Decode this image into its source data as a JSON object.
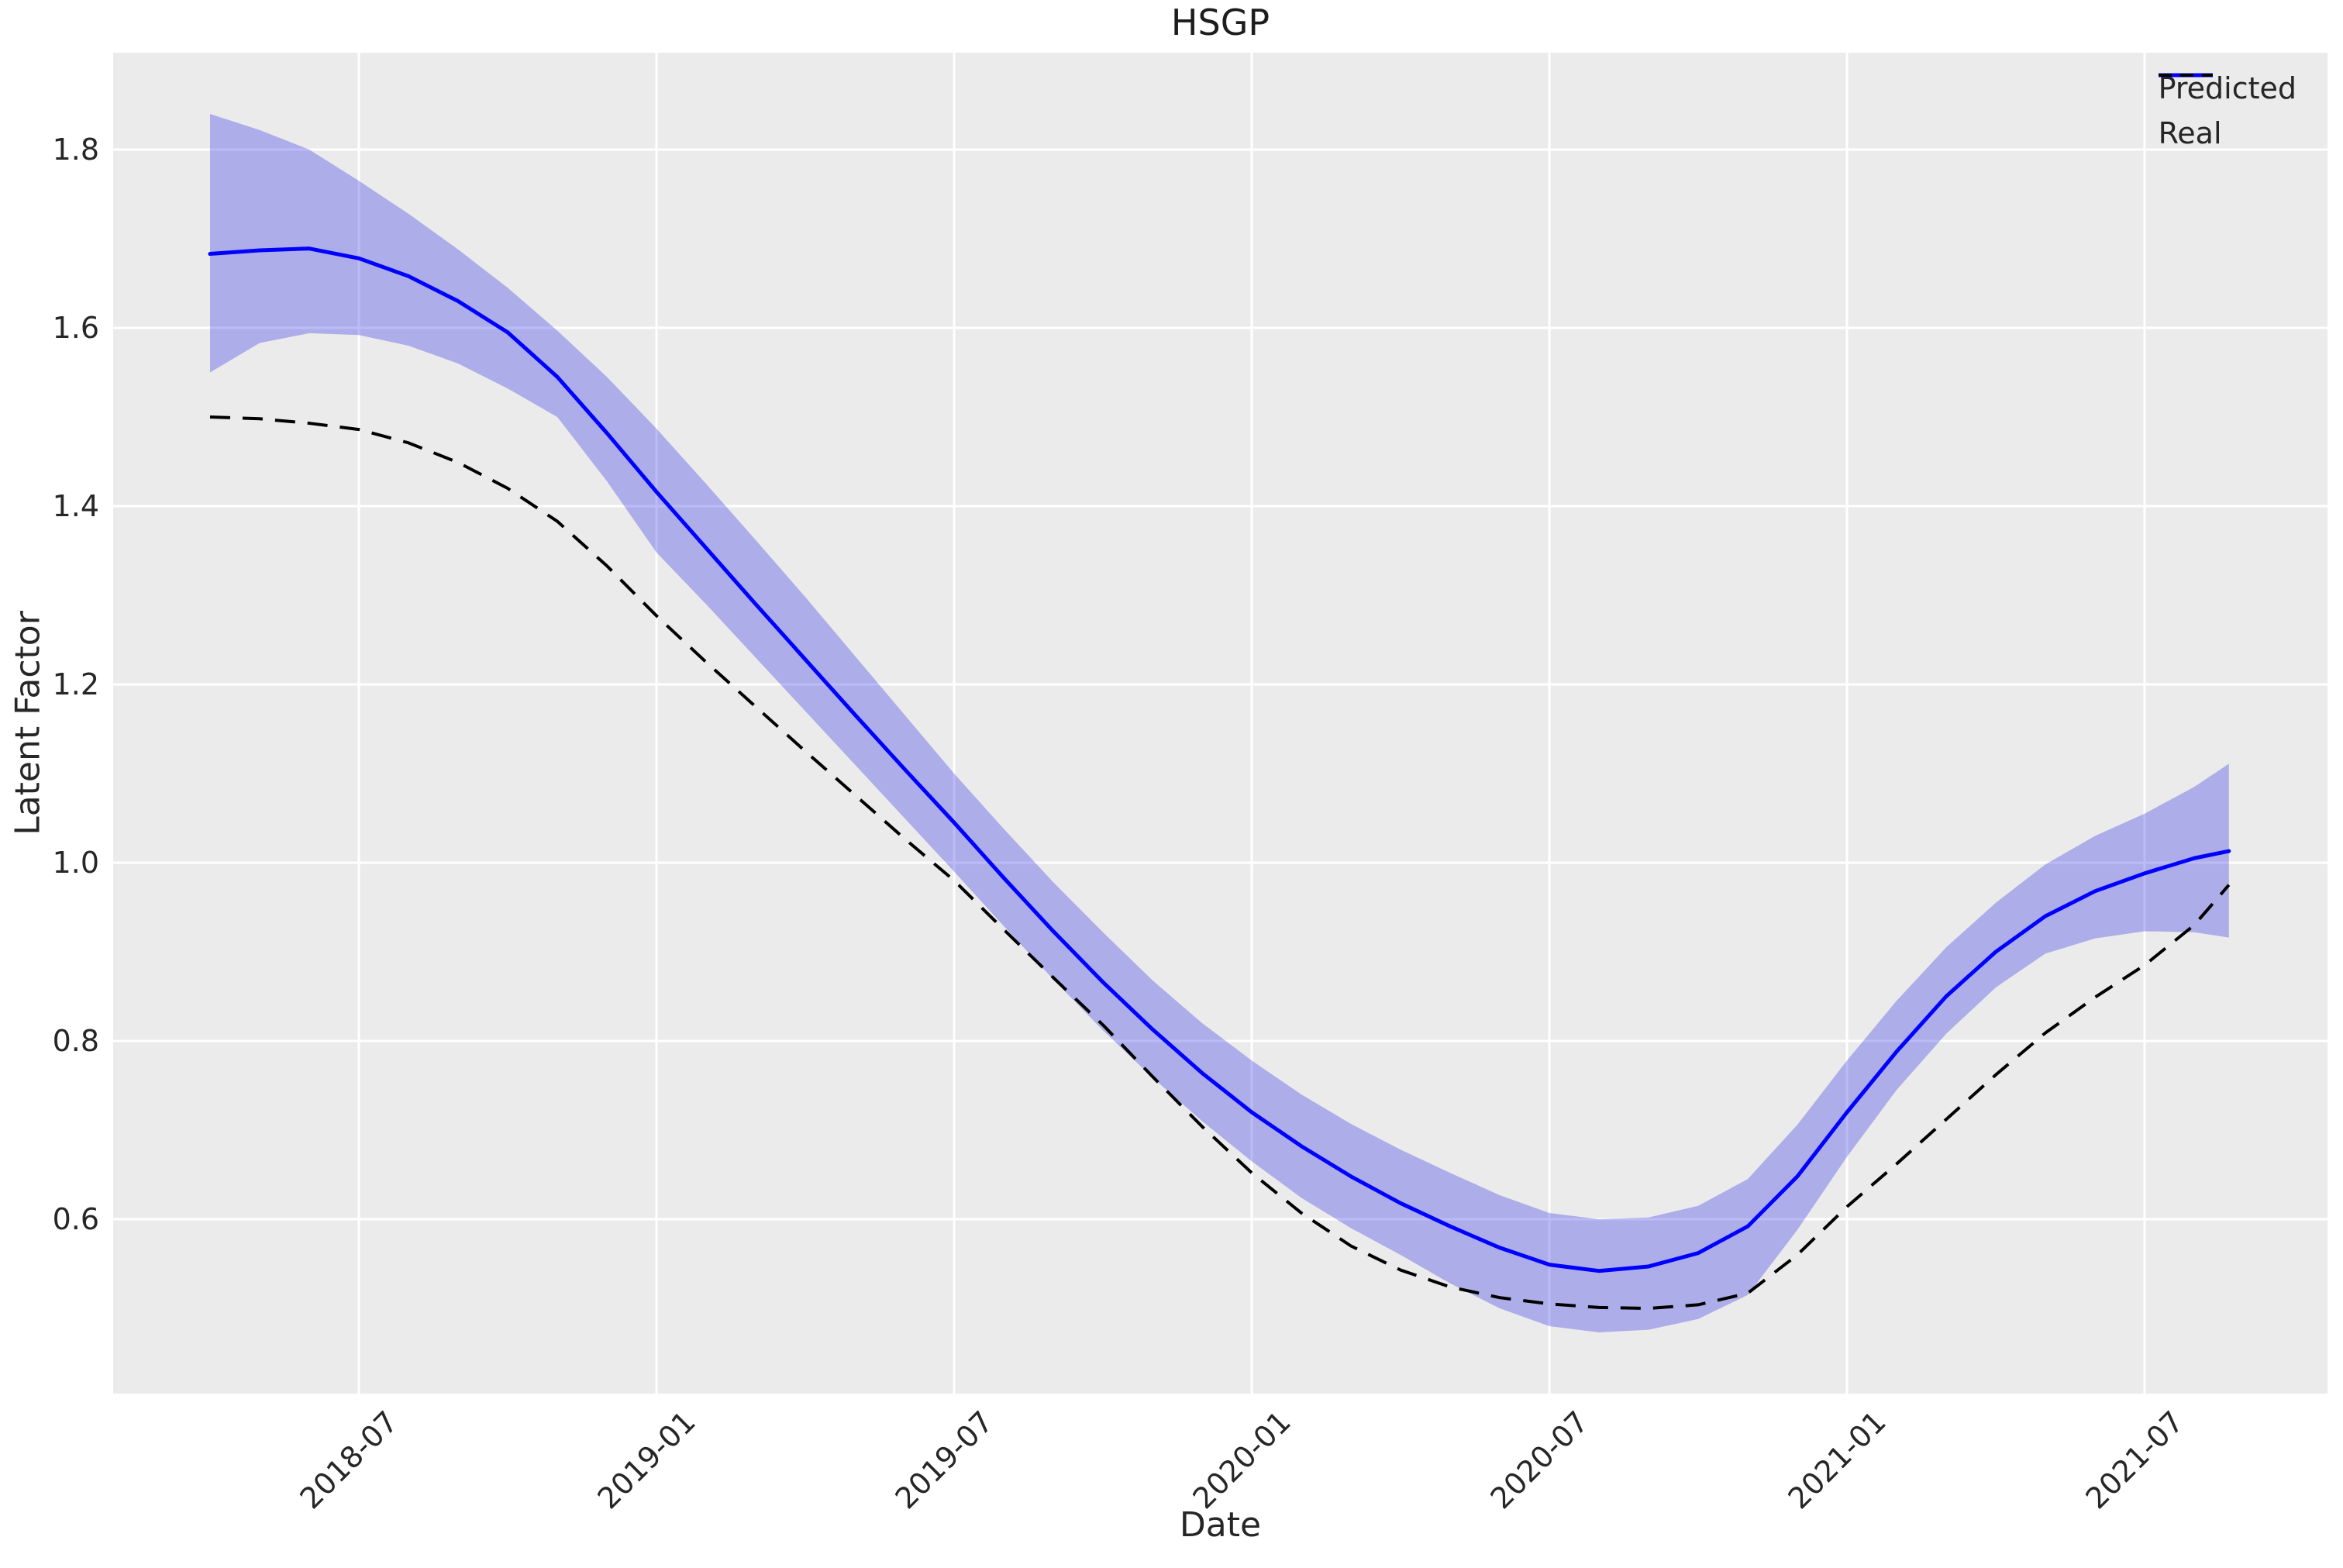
{
  "figure": {
    "title": "HSGP"
  },
  "axes": {
    "xlabel": "Date",
    "ylabel": "Latent Factor",
    "background_color": "#ebebeb",
    "grid_color": "#ffffff",
    "text_color": "#262626"
  },
  "legend": {
    "position": "upper right",
    "items": [
      {
        "label": "Predicted",
        "style": "solid",
        "color": "#0000ff"
      },
      {
        "label": "Real",
        "style": "dashed",
        "color": "#000000"
      }
    ]
  },
  "chart_data": {
    "type": "line",
    "title": "HSGP",
    "xlabel": "Date",
    "ylabel": "Latent Factor",
    "grid": true,
    "legend_position": "upper right",
    "x_unit": "months since 2018-04",
    "x_tick_labels": [
      "2018-07",
      "2019-01",
      "2019-07",
      "2020-01",
      "2020-07",
      "2021-01",
      "2021-07"
    ],
    "x_tick_t": [
      3,
      9,
      15,
      21,
      27,
      33,
      39
    ],
    "y_tick_labels": [
      "0.6",
      "0.8",
      "1.0",
      "1.2",
      "1.4",
      "1.6",
      "1.8"
    ],
    "y_tick_values": [
      0.6,
      0.8,
      1.0,
      1.2,
      1.4,
      1.6,
      1.8
    ],
    "xlim_t": [
      -1.95,
      42.7
    ],
    "ylim": [
      0.404,
      1.909
    ],
    "t": [
      0,
      1,
      2,
      3,
      4,
      5,
      6,
      7,
      8,
      9,
      10,
      11,
      12,
      13,
      14,
      15,
      16,
      17,
      18,
      19,
      20,
      21,
      22,
      23,
      24,
      25,
      26,
      27,
      28,
      29,
      30,
      31,
      32,
      33,
      34,
      35,
      36,
      37,
      38,
      39,
      40,
      40.7
    ],
    "series": [
      {
        "name": "Predicted",
        "color": "#0000ff",
        "line_style": "solid",
        "line_width": 5,
        "values": [
          1.683,
          1.687,
          1.689,
          1.678,
          1.658,
          1.63,
          1.595,
          1.545,
          1.482,
          1.416,
          1.353,
          1.29,
          1.228,
          1.166,
          1.105,
          1.045,
          0.983,
          0.923,
          0.866,
          0.813,
          0.764,
          0.72,
          0.682,
          0.648,
          0.618,
          0.592,
          0.568,
          0.549,
          0.542,
          0.547,
          0.562,
          0.592,
          0.648,
          0.72,
          0.788,
          0.85,
          0.9,
          0.94,
          0.968,
          0.988,
          1.005,
          1.013
        ]
      },
      {
        "name": "Real",
        "color": "#000000",
        "line_style": "dashed",
        "line_width": 4,
        "values": [
          1.5,
          1.498,
          1.493,
          1.486,
          1.471,
          1.449,
          1.42,
          1.383,
          1.333,
          1.277,
          1.225,
          1.175,
          1.125,
          1.076,
          1.027,
          0.98,
          0.925,
          0.871,
          0.818,
          0.76,
          0.704,
          0.652,
          0.607,
          0.57,
          0.543,
          0.524,
          0.512,
          0.505,
          0.501,
          0.5,
          0.504,
          0.517,
          0.56,
          0.614,
          0.662,
          0.712,
          0.762,
          0.809,
          0.849,
          0.885,
          0.93,
          0.975
        ]
      }
    ],
    "band": {
      "name": "Predicted uncertainty band",
      "fill": "rgba(30,30,230,0.30)",
      "upper": [
        1.84,
        1.822,
        1.8,
        1.765,
        1.728,
        1.688,
        1.645,
        1.597,
        1.545,
        1.487,
        1.425,
        1.362,
        1.298,
        1.232,
        1.166,
        1.1,
        1.038,
        0.978,
        0.922,
        0.868,
        0.82,
        0.778,
        0.74,
        0.707,
        0.678,
        0.652,
        0.627,
        0.607,
        0.6,
        0.602,
        0.615,
        0.645,
        0.706,
        0.778,
        0.845,
        0.905,
        0.955,
        0.998,
        1.03,
        1.055,
        1.085,
        1.111
      ],
      "lower": [
        1.55,
        1.583,
        1.594,
        1.592,
        1.58,
        1.56,
        1.532,
        1.5,
        1.428,
        1.348,
        1.29,
        1.23,
        1.17,
        1.11,
        1.05,
        0.99,
        0.929,
        0.869,
        0.812,
        0.759,
        0.71,
        0.665,
        0.624,
        0.59,
        0.56,
        0.528,
        0.5,
        0.48,
        0.473,
        0.476,
        0.488,
        0.515,
        0.588,
        0.67,
        0.745,
        0.808,
        0.86,
        0.898,
        0.915,
        0.923,
        0.922,
        0.916
      ]
    }
  }
}
